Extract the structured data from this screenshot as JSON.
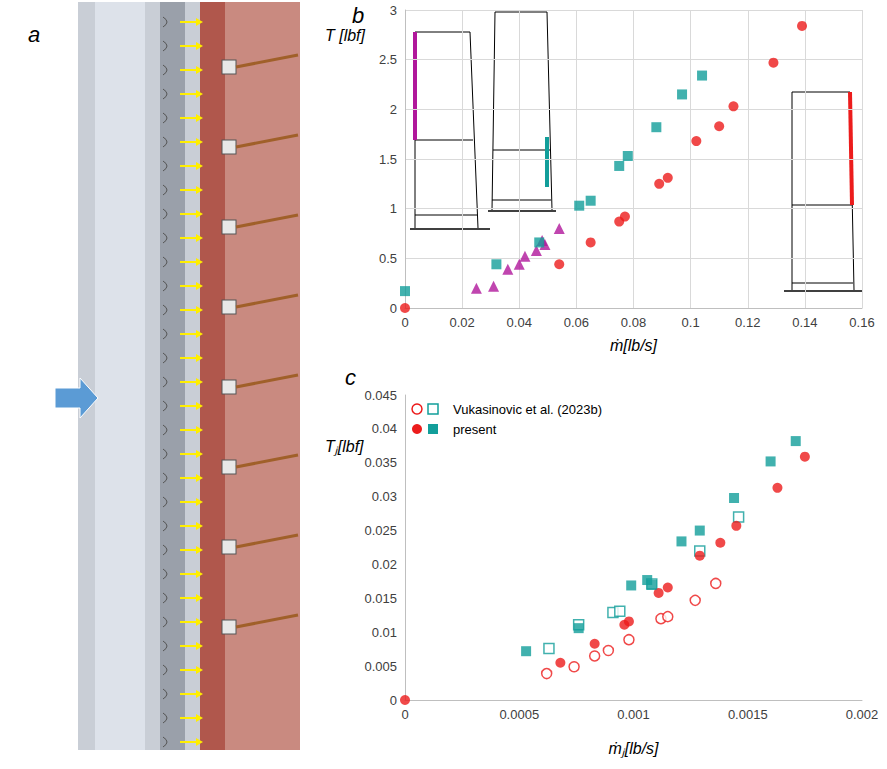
{
  "photo": {
    "letter": "a"
  },
  "chart_data": [
    {
      "letter": "b",
      "type": "scatter",
      "xlabel": "ṁ[lb/s]",
      "ylabel": "T [lbf]",
      "xlim": [
        0,
        0.16
      ],
      "xticks": [
        0,
        0.02,
        0.04,
        0.06,
        0.08,
        0.1,
        0.12,
        0.14,
        0.16
      ],
      "ylim": [
        0,
        3
      ],
      "yticks": [
        0,
        0.5,
        1,
        1.5,
        2,
        2.5,
        3
      ],
      "grid": true,
      "series": [
        {
          "color": "#b0179b",
          "marker": "triangle",
          "x": [
            0.025,
            0.031,
            0.036,
            0.04,
            0.042,
            0.046,
            0.048,
            0.049,
            0.054
          ],
          "values": [
            0.2,
            0.22,
            0.39,
            0.44,
            0.52,
            0.58,
            0.68,
            0.64,
            0.8
          ]
        },
        {
          "color": "#129e9a",
          "marker": "square",
          "x": [
            0,
            0.032,
            0.047,
            0.061,
            0.065,
            0.075,
            0.078,
            0.088,
            0.097,
            0.104
          ],
          "values": [
            0.17,
            0.44,
            0.66,
            1.03,
            1.08,
            1.43,
            1.53,
            1.82,
            2.15,
            2.34
          ]
        },
        {
          "color": "#ec1c1c",
          "marker": "circle",
          "x": [
            0,
            0.054,
            0.065,
            0.075,
            0.077,
            0.089,
            0.092,
            0.102,
            0.11,
            0.115,
            0.129,
            0.139
          ],
          "values": [
            0,
            0.44,
            0.66,
            0.87,
            0.92,
            1.25,
            1.31,
            1.68,
            1.83,
            2.03,
            2.47,
            2.84
          ]
        }
      ]
    },
    {
      "letter": "c",
      "type": "scatter",
      "xlabel": "ṁⱼ[lb/s]",
      "ylabel": "Tⱼ[lbf]",
      "xlim": [
        0,
        0.002
      ],
      "xticks": [
        0,
        0.0005,
        0.001,
        0.0015,
        0.002
      ],
      "ylim": [
        0,
        0.045
      ],
      "yticks": [
        0,
        0.005,
        0.01,
        0.015,
        0.02,
        0.025,
        0.03,
        0.035,
        0.04,
        0.045
      ],
      "grid": false,
      "legend": "upper left",
      "series": [
        {
          "name": "Vukasinovic et al. (2023b)",
          "color": "#ec1c1c",
          "marker": "circle_open",
          "x": [
            0.00062,
            0.00074,
            0.00083,
            0.00089,
            0.00098,
            0.00112,
            0.00115,
            0.00127,
            0.00136
          ],
          "values": [
            0.0039,
            0.0049,
            0.0065,
            0.0073,
            0.0089,
            0.012,
            0.0123,
            0.0147,
            0.0172
          ]
        },
        {
          "name": "Vukasinovic et al. (2023b)",
          "color": "#129e9a",
          "marker": "square_open",
          "x": [
            0.00063,
            0.00076,
            0.00091,
            0.00094,
            0.00108,
            0.00129,
            0.00146
          ],
          "values": [
            0.0076,
            0.0111,
            0.0129,
            0.0131,
            0.0171,
            0.022,
            0.027
          ]
        },
        {
          "name": "present",
          "color": "#ec1c1c",
          "marker": "circle",
          "x": [
            0,
            0.00068,
            0.00083,
            0.00096,
            0.00098,
            0.00111,
            0.00115,
            0.00129,
            0.00138,
            0.00145,
            0.00163,
            0.00175
          ],
          "values": [
            0,
            0.0055,
            0.0083,
            0.0111,
            0.0116,
            0.0158,
            0.0166,
            0.0213,
            0.0232,
            0.0257,
            0.0313,
            0.0359
          ]
        },
        {
          "name": "present",
          "color": "#129e9a",
          "marker": "square",
          "x": [
            0.00053,
            0.00076,
            0.00099,
            0.00106,
            0.00108,
            0.00121,
            0.00129,
            0.00144,
            0.0016,
            0.00171
          ],
          "values": [
            0.0072,
            0.0106,
            0.0169,
            0.0177,
            0.017,
            0.0234,
            0.025,
            0.0298,
            0.0352,
            0.0382
          ]
        }
      ]
    }
  ]
}
